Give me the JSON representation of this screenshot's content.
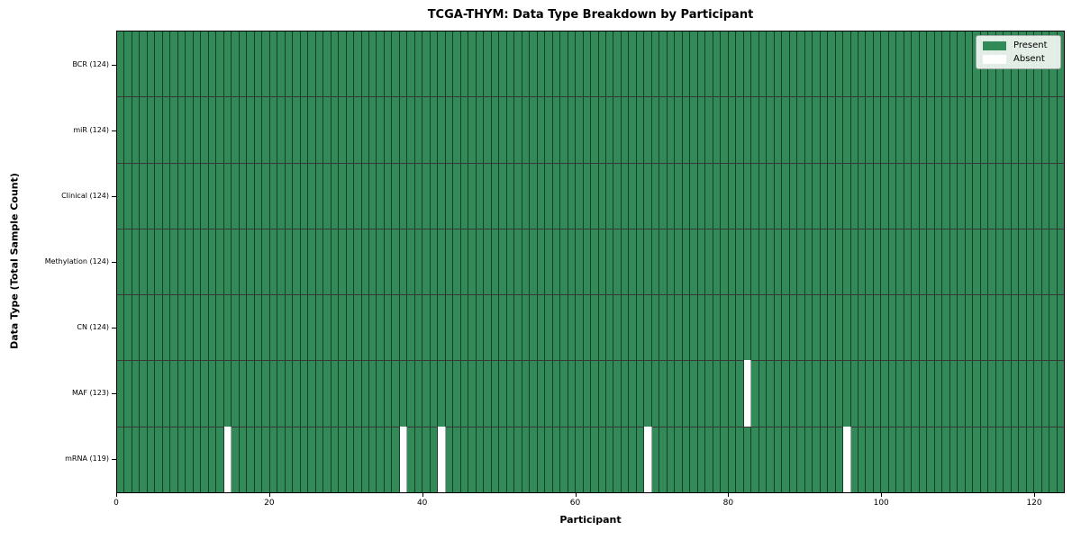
{
  "title": "TCGA-THYM: Data Type Breakdown by Participant",
  "xlabel": "Participant",
  "ylabel": "Data Type (Total Sample Count)",
  "colors": {
    "present": "#318a58",
    "absent": "#ffffff",
    "bar_edge": "rgba(0,0,0,0.55)",
    "row_separator": "rgba(0,0,0,0.78)",
    "plot_border": "#000000",
    "legend_background": "#f2f7f2",
    "legend_border": "#a3a8a3"
  },
  "chart_data": {
    "type": "heatmap",
    "title": "TCGA-THYM: Data Type Breakdown by Participant",
    "xlabel": "Participant",
    "ylabel": "Data Type (Total Sample Count)",
    "n_participants": 124,
    "xlim": [
      0,
      124
    ],
    "x_ticks": [
      0,
      20,
      40,
      60,
      80,
      100,
      120
    ],
    "grid": false,
    "legend_position": "upper right",
    "legend": [
      {
        "label": "Present",
        "color": "#318a58"
      },
      {
        "label": "Absent",
        "color": "#ffffff"
      }
    ],
    "rows": [
      {
        "label": "BCR (124)",
        "total_samples": 124,
        "absent_participants": []
      },
      {
        "label": "miR (124)",
        "total_samples": 124,
        "absent_participants": []
      },
      {
        "label": "Clinical (124)",
        "total_samples": 124,
        "absent_participants": []
      },
      {
        "label": "Methylation (124)",
        "total_samples": 124,
        "absent_participants": []
      },
      {
        "label": "CN (124)",
        "total_samples": 124,
        "absent_participants": []
      },
      {
        "label": "MAF (123)",
        "total_samples": 123,
        "absent_participants": [
          82
        ]
      },
      {
        "label": "mRNA (119)",
        "total_samples": 119,
        "absent_participants": [
          14,
          37,
          42,
          69,
          95
        ]
      }
    ]
  }
}
